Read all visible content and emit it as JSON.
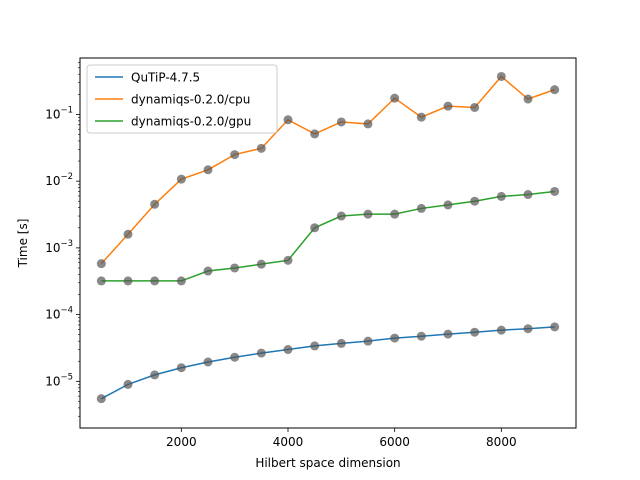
{
  "chart_data": {
    "type": "line",
    "title": "",
    "xlabel": "Hilbert space dimension",
    "ylabel": "Time [s]",
    "xscale": "linear",
    "yscale": "log",
    "xlim": [
      100,
      9400
    ],
    "ylim": [
      2e-06,
      0.7
    ],
    "grid": false,
    "legend_position": "top-left",
    "marker": {
      "shape": "circle",
      "color": "#555555",
      "alpha": 0.7
    },
    "x": [
      500,
      1000,
      1500,
      2000,
      2500,
      3000,
      3500,
      4000,
      4500,
      5000,
      5500,
      6000,
      6500,
      7000,
      7500,
      8000,
      8500,
      9000
    ],
    "x_ticks": [
      {
        "value": 2000,
        "label": "2000"
      },
      {
        "value": 4000,
        "label": "4000"
      },
      {
        "value": 6000,
        "label": "6000"
      },
      {
        "value": 8000,
        "label": "8000"
      }
    ],
    "y_ticks": [
      {
        "value": 1e-05,
        "base": "10",
        "exp": "−5"
      },
      {
        "value": 0.0001,
        "base": "10",
        "exp": "−4"
      },
      {
        "value": 0.001,
        "base": "10",
        "exp": "−3"
      },
      {
        "value": 0.01,
        "base": "10",
        "exp": "−2"
      },
      {
        "value": 0.1,
        "base": "10",
        "exp": "−1"
      }
    ],
    "series": [
      {
        "name": "QuTiP-4.7.5",
        "color": "#1f77b4",
        "values": [
          5.5e-06,
          9e-06,
          1.25e-05,
          1.6e-05,
          1.95e-05,
          2.3e-05,
          2.65e-05,
          3e-05,
          3.4e-05,
          3.7e-05,
          4e-05,
          4.45e-05,
          4.75e-05,
          5.1e-05,
          5.45e-05,
          5.85e-05,
          6.15e-05,
          6.55e-05
        ]
      },
      {
        "name": "dynamiqs-0.2.0/cpu",
        "color": "#ff7f0e",
        "values": [
          0.00058,
          0.0016,
          0.0045,
          0.0107,
          0.0148,
          0.025,
          0.031,
          0.083,
          0.051,
          0.077,
          0.072,
          0.175,
          0.091,
          0.133,
          0.127,
          0.37,
          0.17,
          0.235
        ]
      },
      {
        "name": "dynamiqs-0.2.0/gpu",
        "color": "#2ca02c",
        "values": [
          0.00032,
          0.00032,
          0.00032,
          0.00032,
          0.00045,
          0.0005,
          0.00057,
          0.00065,
          0.002,
          0.003,
          0.0032,
          0.0032,
          0.0039,
          0.0044,
          0.005,
          0.0059,
          0.0063,
          0.007
        ]
      }
    ]
  }
}
